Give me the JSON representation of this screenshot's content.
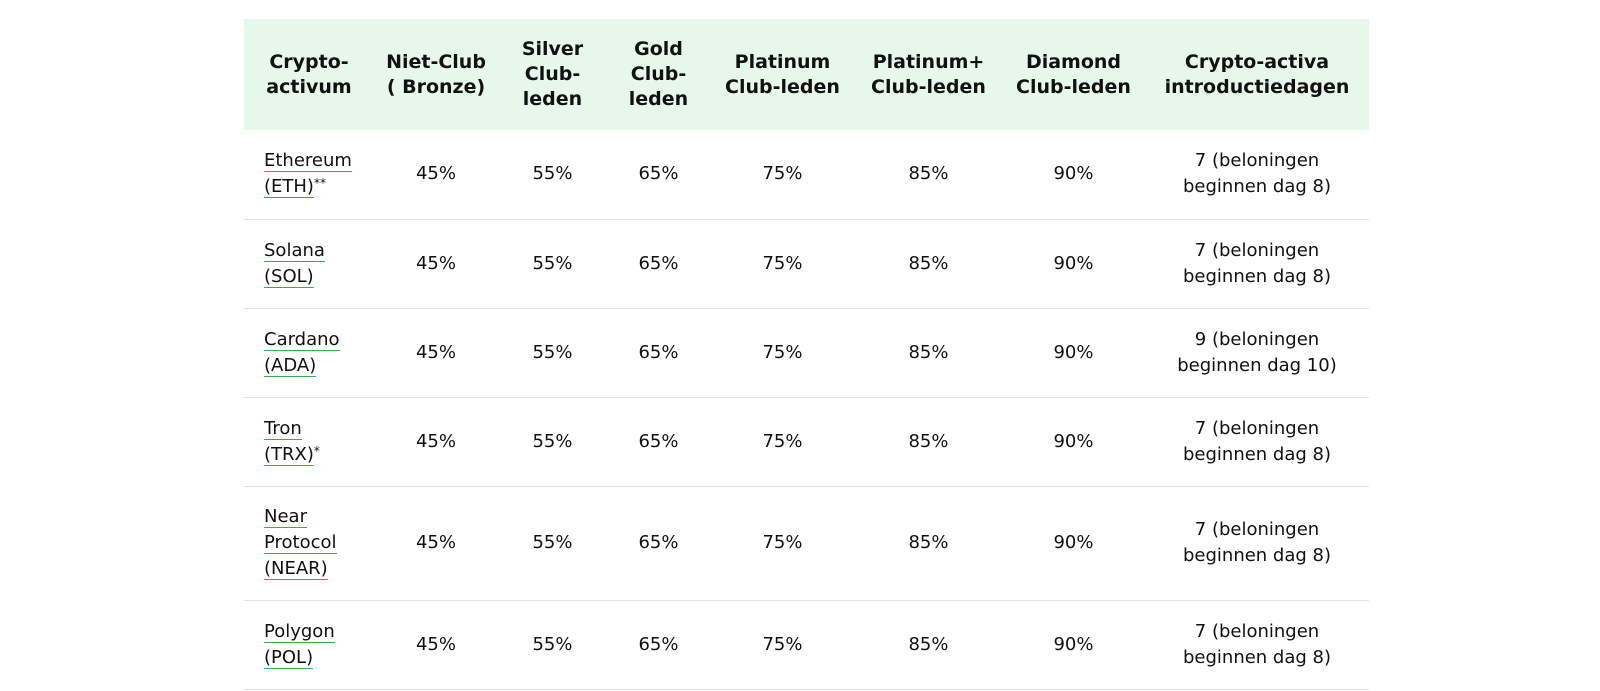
{
  "table": {
    "headers": [
      "Crypto-activum",
      "Niet-Club ( Bronze)",
      "Silver Club-leden",
      "Gold Club-leden",
      "Platinum Club-leden",
      "Platinum+ Club-leden",
      "Diamond Club-leden",
      "Crypto-activa introductiedagen"
    ],
    "rows": [
      {
        "asset_lines": [
          "Ethereum",
          "(ETH)"
        ],
        "note": "**",
        "values": [
          "45%",
          "55%",
          "65%",
          "75%",
          "85%",
          "90%"
        ],
        "intro": "7 (beloningen beginnen dag 8)"
      },
      {
        "asset_lines": [
          "Solana",
          "(SOL)"
        ],
        "note": "",
        "values": [
          "45%",
          "55%",
          "65%",
          "75%",
          "85%",
          "90%"
        ],
        "intro": "7 (beloningen beginnen dag 8)"
      },
      {
        "asset_lines": [
          "Cardano",
          "(ADA)"
        ],
        "note": "",
        "values": [
          "45%",
          "55%",
          "65%",
          "75%",
          "85%",
          "90%"
        ],
        "intro": "9 (beloningen beginnen dag 10)"
      },
      {
        "asset_lines": [
          "Tron",
          "(TRX)"
        ],
        "note": "*",
        "values": [
          "45%",
          "55%",
          "65%",
          "75%",
          "85%",
          "90%"
        ],
        "intro": "7 (beloningen beginnen dag 8)"
      },
      {
        "asset_lines": [
          "Near",
          "Protocol",
          "(NEAR)"
        ],
        "note": "",
        "values": [
          "45%",
          "55%",
          "65%",
          "75%",
          "85%",
          "90%"
        ],
        "intro": "7 (beloningen beginnen dag 8)"
      },
      {
        "asset_lines": [
          "Polygon",
          "(POL)"
        ],
        "note": "",
        "values": [
          "45%",
          "55%",
          "65%",
          "75%",
          "85%",
          "90%"
        ],
        "intro": "7 (beloningen beginnen dag 8)"
      }
    ]
  }
}
